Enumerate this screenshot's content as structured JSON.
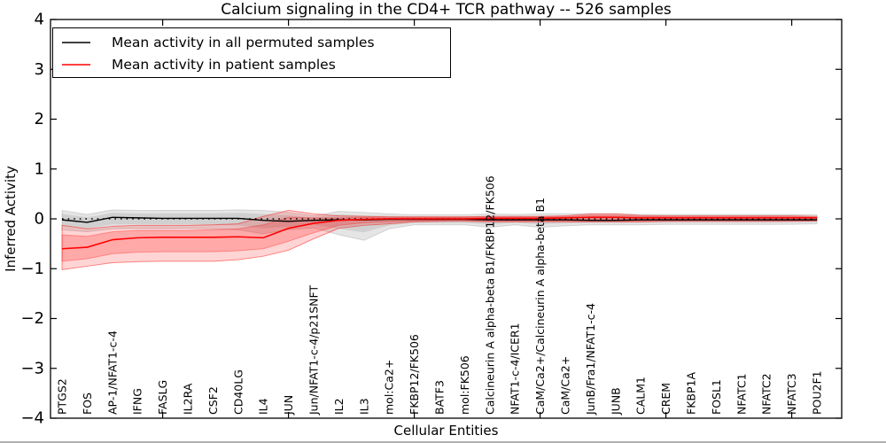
{
  "title": "Calcium signaling in the CD4+ TCR pathway -- 526 samples",
  "xlabel": "Cellular Entities",
  "ylabel": "Inferred Activity",
  "colors": {
    "permuted_line": "#000000",
    "patient_line": "#ff0000",
    "permuted_band": "rgba(0,0,0,0.10)",
    "patient_band": "rgba(255,0,0,0.18)"
  },
  "legend": [
    {
      "label": "Mean activity in all permuted samples",
      "color": "#000000"
    },
    {
      "label": "Mean activity in patient samples",
      "color": "#ff0000"
    }
  ],
  "chart_data": {
    "type": "line",
    "title": "Calcium signaling in the CD4+ TCR pathway -- 526 samples",
    "xlabel": "Cellular Entities",
    "ylabel": "Inferred Activity",
    "ylim": [
      -4,
      4
    ],
    "ytick_values": [
      -4,
      -3,
      -2,
      -1,
      0,
      1,
      2,
      3,
      4
    ],
    "ytick_labels": [
      "−4",
      "−3",
      "−2",
      "−1",
      "0",
      "1",
      "2",
      "3",
      "4"
    ],
    "xtick_positions": [
      5,
      10,
      15,
      20,
      25,
      30
    ],
    "zero_reference_line": true,
    "legend_position": "upper left",
    "grid": false,
    "categories": [
      "PTGS2",
      "FOS",
      "AP-1/NFAT1-c-4",
      "IFNG",
      "FASLG",
      "IL2RA",
      "CSF2",
      "CD40LG",
      "IL4",
      "JUN",
      "Jun/NFAT1-c-4/p21SNFT",
      "IL2",
      "IL3",
      "mol:Ca2+",
      "FKBP12/FK506",
      "BATF3",
      "mol:FK506",
      "Calcineurin A alpha-beta B1/FKBP12/FK506",
      "NFAT1-c-4/ICER1",
      "CaM/Ca2+/Calcineurin A alpha-beta B1",
      "CaM/Ca2+",
      "JunB/Fra1/NFAT1-c-4",
      "JUNB",
      "CALM1",
      "CREM",
      "FKBP1A",
      "FOSL1",
      "NFATC1",
      "NFATC2",
      "NFATC3",
      "POU2F1"
    ],
    "series": [
      {
        "name": "Mean activity in all permuted samples",
        "color": "#000000",
        "values": [
          -0.02,
          -0.07,
          0.03,
          0.02,
          0.01,
          0.01,
          0.01,
          0.01,
          -0.03,
          -0.05,
          -0.03,
          -0.02,
          -0.02,
          -0.01,
          -0.01,
          -0.01,
          -0.01,
          -0.02,
          -0.02,
          -0.02,
          -0.02,
          -0.03,
          -0.03,
          -0.02,
          -0.02,
          -0.02,
          -0.02,
          -0.02,
          -0.02,
          -0.02,
          -0.02
        ],
        "band_lo": [
          -0.22,
          -0.26,
          -0.2,
          -0.19,
          -0.19,
          -0.19,
          -0.2,
          -0.22,
          -0.3,
          -0.22,
          -0.18,
          -0.32,
          -0.43,
          -0.2,
          -0.12,
          -0.12,
          -0.12,
          -0.17,
          -0.12,
          -0.17,
          -0.14,
          -0.12,
          -0.12,
          -0.12,
          -0.11,
          -0.11,
          -0.11,
          -0.11,
          -0.11,
          -0.11,
          -0.1
        ],
        "band_hi": [
          0.17,
          0.09,
          0.18,
          0.17,
          0.17,
          0.17,
          0.17,
          0.18,
          0.17,
          0.13,
          0.06,
          0.15,
          0.13,
          0.1,
          0.08,
          0.08,
          0.08,
          0.1,
          0.09,
          0.1,
          0.1,
          0.1,
          0.1,
          0.09,
          0.09,
          0.09,
          0.09,
          0.09,
          0.09,
          0.09,
          0.08
        ],
        "band_inner_lo": [
          -0.14,
          -0.19,
          -0.11,
          -0.11,
          -0.11,
          -0.11,
          -0.12,
          -0.13,
          -0.19,
          -0.16,
          -0.12,
          -0.2,
          -0.27,
          -0.13,
          -0.08,
          -0.08,
          -0.08,
          -0.11,
          -0.08,
          -0.11,
          -0.09,
          -0.08,
          -0.08,
          -0.08,
          -0.07,
          -0.07,
          -0.07,
          -0.07,
          -0.07,
          -0.07,
          -0.07
        ],
        "band_inner_hi": [
          0.1,
          0.03,
          0.12,
          0.11,
          0.11,
          0.11,
          0.11,
          0.12,
          0.1,
          0.07,
          0.03,
          0.09,
          0.07,
          0.06,
          0.05,
          0.05,
          0.05,
          0.06,
          0.06,
          0.06,
          0.06,
          0.06,
          0.06,
          0.06,
          0.06,
          0.06,
          0.06,
          0.06,
          0.06,
          0.06,
          0.05
        ]
      },
      {
        "name": "Mean activity in patient samples",
        "color": "#ff0000",
        "values": [
          -0.6,
          -0.57,
          -0.42,
          -0.38,
          -0.37,
          -0.37,
          -0.37,
          -0.36,
          -0.38,
          -0.19,
          -0.09,
          -0.03,
          -0.01,
          0.0,
          0.0,
          0.0,
          0.0,
          0.01,
          0.01,
          0.01,
          0.02,
          0.03,
          0.03,
          0.02,
          0.02,
          0.02,
          0.02,
          0.02,
          0.02,
          0.02,
          0.02
        ],
        "band_lo": [
          -1.02,
          -0.95,
          -0.88,
          -0.86,
          -0.85,
          -0.85,
          -0.85,
          -0.82,
          -0.75,
          -0.63,
          -0.4,
          -0.19,
          -0.13,
          -0.1,
          -0.06,
          -0.05,
          -0.05,
          -0.06,
          -0.06,
          -0.06,
          -0.06,
          -0.06,
          -0.06,
          -0.06,
          -0.05,
          -0.05,
          -0.05,
          -0.05,
          -0.05,
          -0.05,
          -0.04
        ],
        "band_hi": [
          -0.13,
          -0.2,
          -0.15,
          -0.13,
          -0.13,
          -0.13,
          -0.12,
          -0.1,
          0.05,
          0.17,
          0.1,
          0.06,
          0.05,
          0.04,
          0.04,
          0.04,
          0.04,
          0.05,
          0.05,
          0.05,
          0.06,
          0.1,
          0.1,
          0.07,
          0.06,
          0.06,
          0.06,
          0.06,
          0.06,
          0.06,
          0.05
        ],
        "band_inner_lo": [
          -0.85,
          -0.8,
          -0.7,
          -0.67,
          -0.66,
          -0.66,
          -0.66,
          -0.64,
          -0.6,
          -0.45,
          -0.28,
          -0.13,
          -0.08,
          -0.06,
          -0.04,
          -0.03,
          -0.03,
          -0.04,
          -0.04,
          -0.04,
          -0.04,
          -0.04,
          -0.04,
          -0.04,
          -0.03,
          -0.03,
          -0.03,
          -0.03,
          -0.03,
          -0.03,
          -0.03
        ],
        "band_inner_hi": [
          -0.32,
          -0.35,
          -0.26,
          -0.23,
          -0.23,
          -0.23,
          -0.22,
          -0.2,
          -0.12,
          0.03,
          0.02,
          0.02,
          0.03,
          0.02,
          0.03,
          0.03,
          0.03,
          0.03,
          0.03,
          0.03,
          0.04,
          0.07,
          0.07,
          0.05,
          0.04,
          0.04,
          0.04,
          0.04,
          0.04,
          0.04,
          0.03
        ]
      }
    ]
  }
}
